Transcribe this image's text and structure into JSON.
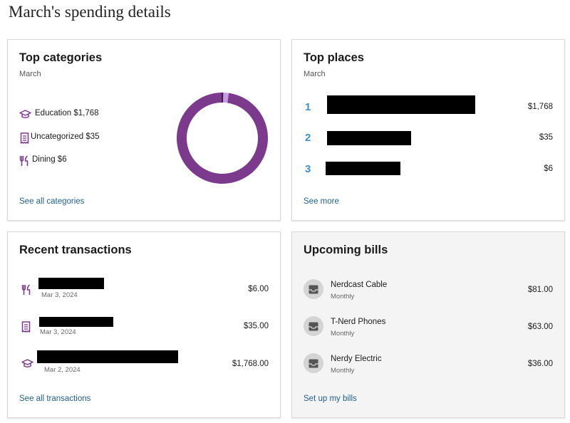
{
  "page": {
    "title": "March's spending details"
  },
  "colors": {
    "accent_purple": "#7b3a8c",
    "light_purple": "#c99be0",
    "dark_purple": "#3c1650",
    "link_blue": "#1f5f8f",
    "rank_blue": "#3f8fc9"
  },
  "top_categories": {
    "title": "Top categories",
    "subtitle": "March",
    "items": [
      {
        "label": "Education $1,768",
        "icon": "graduation-cap-icon",
        "value": 1768
      },
      {
        "label": "Uncategorized $35",
        "icon": "receipt-icon",
        "value": 35
      },
      {
        "label": "Dining $6",
        "icon": "fork-knife-icon",
        "value": 6
      }
    ],
    "link": "See all categories"
  },
  "top_places": {
    "title": "Top places",
    "subtitle": "March",
    "items": [
      {
        "rank": "1",
        "amount": "$1,768"
      },
      {
        "rank": "2",
        "amount": "$35"
      },
      {
        "rank": "3",
        "amount": "$6"
      }
    ],
    "link": "See more"
  },
  "recent_transactions": {
    "title": "Recent transactions",
    "items": [
      {
        "icon": "fork-knife-icon",
        "date": "Mar 3, 2024",
        "amount": "$6.00"
      },
      {
        "icon": "receipt-icon",
        "date": "Mar 3, 2024",
        "amount": "$35.00"
      },
      {
        "icon": "graduation-cap-icon",
        "date": "Mar 2, 2024",
        "amount": "$1,768.00"
      }
    ],
    "link": "See all transactions"
  },
  "upcoming_bills": {
    "title": "Upcoming bills",
    "items": [
      {
        "name": "Nerdcast Cable",
        "frequency": "Monthly",
        "amount": "$81.00",
        "icon": "inbox-icon"
      },
      {
        "name": "T-Nerd Phones",
        "frequency": "Monthly",
        "amount": "$63.00",
        "icon": "inbox-icon"
      },
      {
        "name": "Nerdy Electric",
        "frequency": "Monthly",
        "amount": "$36.00",
        "icon": "inbox-icon"
      }
    ],
    "link": "Set up my bills"
  }
}
